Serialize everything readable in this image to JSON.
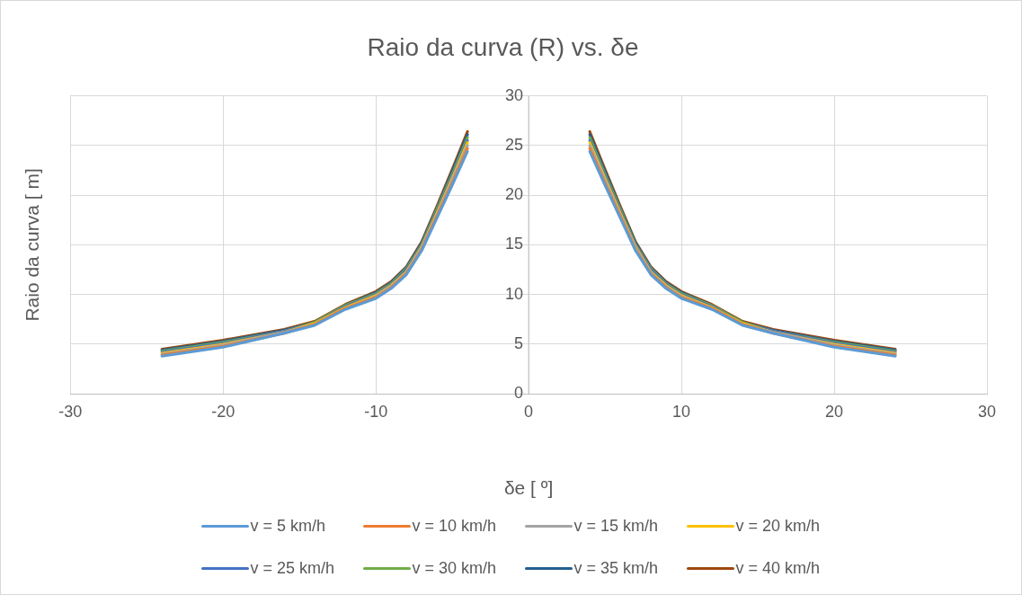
{
  "chart_data": {
    "type": "line",
    "title": "Raio da curva (R) vs. δe",
    "xlabel": "δe [ º]",
    "ylabel": "Raio da curva [ m]",
    "x": [
      -24,
      -20,
      -16,
      -14,
      -12,
      -10,
      -9,
      -8,
      -7,
      -6,
      -5,
      -4,
      0,
      4,
      5,
      6,
      7,
      8,
      9,
      10,
      12,
      14,
      16,
      20,
      24
    ],
    "xlim": [
      -30,
      30
    ],
    "xticks": [
      -30,
      -20,
      -10,
      0,
      10,
      20,
      30
    ],
    "ylim": [
      0,
      30
    ],
    "yticks": [
      0,
      5,
      10,
      15,
      20,
      25,
      30
    ],
    "grid": true,
    "legend": "bottom",
    "series": [
      {
        "name": "v = 5 km/h",
        "color": "#5b9bd5",
        "values": [
          3.8,
          4.7,
          6.1,
          6.9,
          8.5,
          9.6,
          10.6,
          12.0,
          14.4,
          17.7,
          21.0,
          24.4,
          null,
          24.4,
          21.0,
          17.7,
          14.4,
          12.0,
          10.6,
          9.6,
          8.5,
          6.9,
          6.1,
          4.7,
          3.8
        ]
      },
      {
        "name": "v = 10 km/h",
        "color": "#ed7d31",
        "values": [
          3.9,
          4.8,
          6.1,
          7.0,
          8.6,
          9.7,
          10.7,
          12.1,
          14.5,
          17.9,
          21.2,
          24.7,
          null,
          24.7,
          21.2,
          17.9,
          14.5,
          12.1,
          10.7,
          9.7,
          8.6,
          7.0,
          6.1,
          4.8,
          3.9
        ]
      },
      {
        "name": "v = 15 km/h",
        "color": "#a5a5a5",
        "values": [
          4.0,
          4.9,
          6.2,
          7.0,
          8.6,
          9.8,
          10.8,
          12.2,
          14.7,
          18.0,
          21.5,
          25.0,
          null,
          25.0,
          21.5,
          18.0,
          14.7,
          12.2,
          10.8,
          9.8,
          8.6,
          7.0,
          6.2,
          4.9,
          4.0
        ]
      },
      {
        "name": "v = 20 km/h",
        "color": "#ffc000",
        "values": [
          4.1,
          5.0,
          6.2,
          7.1,
          8.7,
          9.9,
          10.9,
          12.3,
          14.8,
          18.2,
          21.7,
          25.3,
          null,
          25.3,
          21.7,
          18.2,
          14.8,
          12.3,
          10.9,
          9.9,
          8.7,
          7.1,
          6.2,
          5.0,
          4.1
        ]
      },
      {
        "name": "v = 25 km/h",
        "color": "#4472c4",
        "values": [
          4.2,
          5.1,
          6.3,
          7.1,
          8.8,
          10.0,
          11.0,
          12.5,
          14.9,
          18.4,
          21.9,
          25.5,
          null,
          25.5,
          21.9,
          18.4,
          14.9,
          12.5,
          11.0,
          10.0,
          8.8,
          7.1,
          6.3,
          5.1,
          4.2
        ]
      },
      {
        "name": "v = 30 km/h",
        "color": "#70ad47",
        "values": [
          4.3,
          5.2,
          6.3,
          7.2,
          8.9,
          10.1,
          11.1,
          12.6,
          15.0,
          18.6,
          22.1,
          25.8,
          null,
          25.8,
          22.1,
          18.6,
          15.0,
          12.6,
          11.1,
          10.1,
          8.9,
          7.2,
          6.3,
          5.2,
          4.3
        ]
      },
      {
        "name": "v = 35 km/h",
        "color": "#255e91",
        "values": [
          4.4,
          5.3,
          6.4,
          7.2,
          8.9,
          10.2,
          11.2,
          12.7,
          15.2,
          18.7,
          22.4,
          26.1,
          null,
          26.1,
          22.4,
          18.7,
          15.2,
          12.7,
          11.2,
          10.2,
          8.9,
          7.2,
          6.4,
          5.3,
          4.4
        ]
      },
      {
        "name": "v = 40 km/h",
        "color": "#9e480e",
        "values": [
          4.5,
          5.4,
          6.5,
          7.3,
          9.0,
          10.3,
          11.3,
          12.8,
          15.3,
          18.9,
          22.6,
          26.4,
          null,
          26.4,
          22.6,
          18.9,
          15.3,
          12.8,
          11.3,
          10.3,
          9.0,
          7.3,
          6.5,
          5.4,
          4.5
        ]
      }
    ]
  }
}
